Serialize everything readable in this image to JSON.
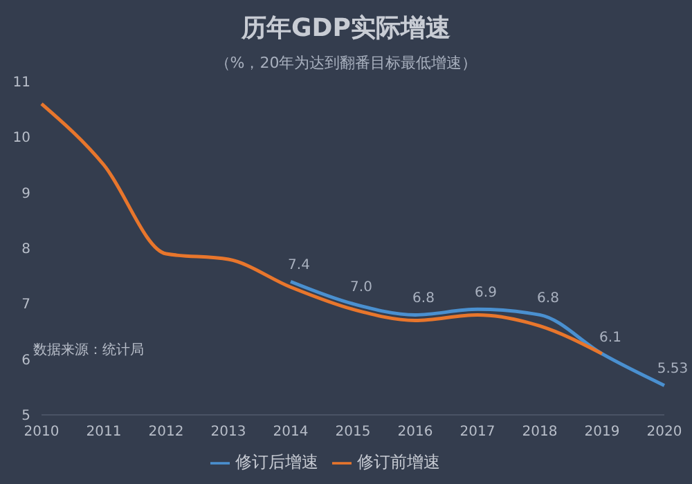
{
  "chart_data": {
    "type": "line",
    "title": "历年GDP实际增速",
    "subtitle": "（%，20年为达到翻番目标最低增速）",
    "categories": [
      "2010",
      "2011",
      "2012",
      "2013",
      "2014",
      "2015",
      "2016",
      "2017",
      "2018",
      "2019",
      "2020"
    ],
    "series": [
      {
        "name": "修订后增速",
        "color": "#4a90d0",
        "values": [
          null,
          null,
          null,
          null,
          7.4,
          7.0,
          6.8,
          6.9,
          6.8,
          6.1,
          5.53
        ],
        "value_labels": [
          null,
          null,
          null,
          null,
          "7.4",
          "7.0",
          "6.8",
          "6.9",
          "6.8",
          "6.1",
          "5.53"
        ]
      },
      {
        "name": "修订前增速",
        "color": "#e8762c",
        "values": [
          10.6,
          9.5,
          7.9,
          7.8,
          7.3,
          6.9,
          6.7,
          6.8,
          6.6,
          6.1,
          null
        ]
      }
    ],
    "ylim": [
      5,
      11
    ],
    "yticks": [
      5,
      6,
      7,
      8,
      9,
      10,
      11
    ],
    "legend": "bottom",
    "marker": "none",
    "line_style": "solid",
    "annotations": [
      "数据来源：统计局"
    ]
  }
}
